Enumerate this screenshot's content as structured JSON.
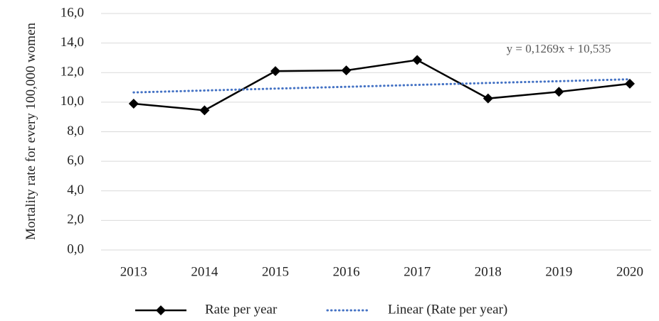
{
  "chart_data": {
    "type": "line",
    "y_label": "Mortality rate for every 100,000 women",
    "annotation": "y = 0,1269x + 10,535",
    "categories": [
      "2013",
      "2014",
      "2015",
      "2016",
      "2017",
      "2018",
      "2019",
      "2020"
    ],
    "series": [
      {
        "name": "Rate per year",
        "color": "#000000",
        "style": "solid",
        "marker": "diamond",
        "values": [
          9.9,
          9.45,
          12.1,
          12.15,
          12.85,
          10.25,
          10.7,
          11.25
        ]
      },
      {
        "name": "Linear (Rate per year)",
        "color": "#4472c4",
        "style": "dotted",
        "values": [
          10.66,
          10.79,
          10.92,
          11.04,
          11.17,
          11.3,
          11.42,
          11.55
        ]
      }
    ],
    "ylim": [
      0,
      16
    ],
    "yticks": [
      {
        "value": 0,
        "label": "0,0"
      },
      {
        "value": 2,
        "label": "2,0"
      },
      {
        "value": 4,
        "label": "4,0"
      },
      {
        "value": 6,
        "label": "6,0"
      },
      {
        "value": 8,
        "label": "8,0"
      },
      {
        "value": 10,
        "label": "10,0"
      },
      {
        "value": 12,
        "label": "12,0"
      },
      {
        "value": 14,
        "label": "14,0"
      },
      {
        "value": 16,
        "label": "16,0"
      }
    ],
    "grid": true,
    "legend": "bottom"
  }
}
